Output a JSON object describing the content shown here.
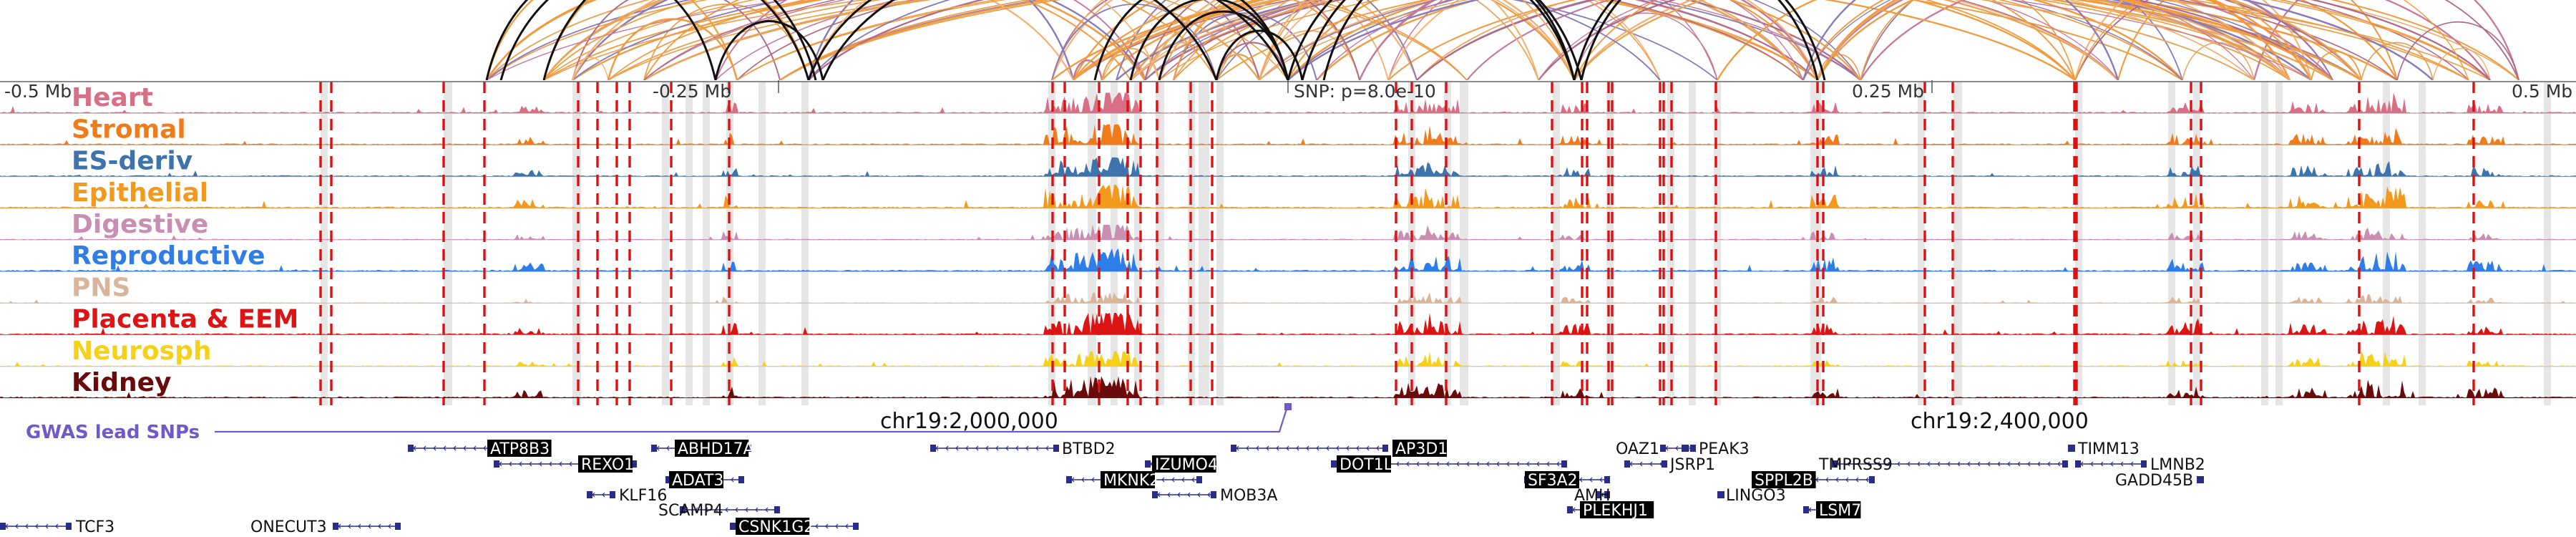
{
  "axis": {
    "left_label": "-0.5 Mb",
    "mid_left_label": "-0.25 Mb",
    "snp_label": "SNP: p=8.0e-10",
    "mid_right_label": "0.25 Mb",
    "right_label": "0.5 Mb"
  },
  "tracks": [
    {
      "name": "Heart",
      "color": "#d86f84"
    },
    {
      "name": "Stromal",
      "color": "#f07b1a"
    },
    {
      "name": "ES-deriv",
      "color": "#3d74ae"
    },
    {
      "name": "Epithelial",
      "color": "#f39a1e"
    },
    {
      "name": "Digestive",
      "color": "#c98fb3"
    },
    {
      "name": "Reproductive",
      "color": "#2f7de8"
    },
    {
      "name": "PNS",
      "color": "#d9b59b"
    },
    {
      "name": "Placenta & EEM",
      "color": "#dc1414"
    },
    {
      "name": "Neurosph",
      "color": "#f5d11a"
    },
    {
      "name": "Kidney",
      "color": "#6b0a0a"
    }
  ],
  "gwas": {
    "label": "GWAS lead SNPs",
    "color": "#6f5ac8"
  },
  "coordinates": {
    "left": "chr19:2,000,000",
    "right": "chr19:2,400,000"
  },
  "genes": [
    {
      "name": "ATP8B3",
      "boxed": true
    },
    {
      "name": "ABHD17A",
      "boxed": true
    },
    {
      "name": "REXO1",
      "boxed": true
    },
    {
      "name": "ADAT3",
      "boxed": true
    },
    {
      "name": "KLF16",
      "boxed": false
    },
    {
      "name": "SCAMP4",
      "boxed": false
    },
    {
      "name": "CSNK1G2",
      "boxed": true
    },
    {
      "name": "TCF3",
      "boxed": false
    },
    {
      "name": "ONECUT3",
      "boxed": false
    },
    {
      "name": "BTBD2",
      "boxed": false
    },
    {
      "name": "IZUMO4",
      "boxed": true
    },
    {
      "name": "MKNK2",
      "boxed": true
    },
    {
      "name": "MOB3A",
      "boxed": false
    },
    {
      "name": "AP3D1",
      "boxed": true
    },
    {
      "name": "DOT1L",
      "boxed": true
    },
    {
      "name": "SF3A2",
      "boxed": true
    },
    {
      "name": "AMH",
      "boxed": false
    },
    {
      "name": "PLEKHJ1",
      "boxed": true
    },
    {
      "name": "OAZ1",
      "boxed": false
    },
    {
      "name": "PEAK3",
      "boxed": false
    },
    {
      "name": "JSRP1",
      "boxed": false
    },
    {
      "name": "LINGO3",
      "boxed": false
    },
    {
      "name": "SPPL2B",
      "boxed": true
    },
    {
      "name": "TMPRSS9",
      "boxed": false
    },
    {
      "name": "LSM7",
      "boxed": true
    },
    {
      "name": "TIMM13",
      "boxed": false
    },
    {
      "name": "LMNB2",
      "boxed": false
    },
    {
      "name": "GADD45B",
      "boxed": false
    }
  ]
}
